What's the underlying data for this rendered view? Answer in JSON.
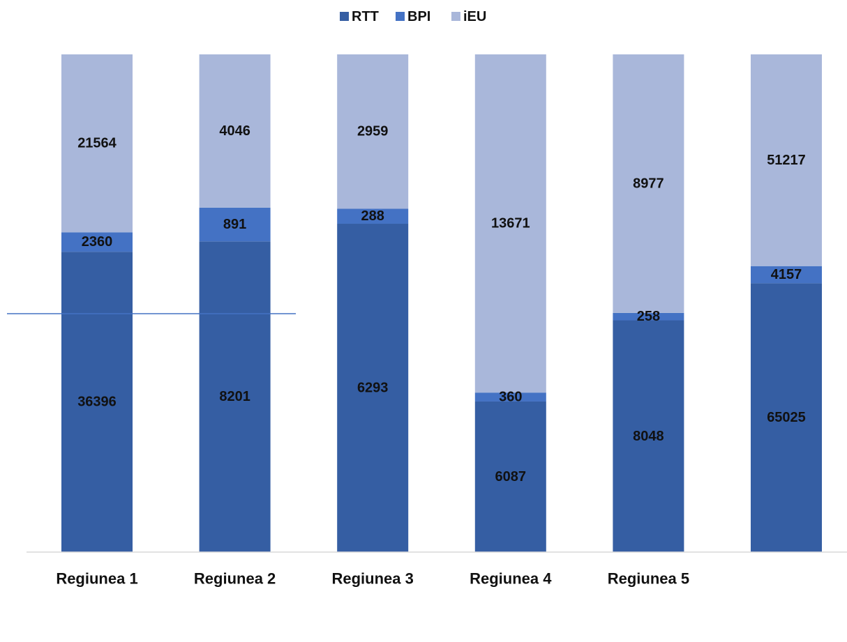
{
  "chart_data": {
    "type": "bar",
    "stacked": "percent",
    "title": "",
    "xlabel": "",
    "ylabel": "",
    "grid": false,
    "legend_position": "top",
    "categories": [
      "Regiunea 1",
      "Regiunea 2",
      "Regiunea 3",
      "Regiunea 4",
      "Regiunea 5",
      ""
    ],
    "series": [
      {
        "name": "RTT",
        "color": "#355ea3",
        "values": [
          36396,
          8201,
          6293,
          6087,
          8048,
          65025
        ]
      },
      {
        "name": "BPI",
        "color": "#4472c4",
        "values": [
          2360,
          891,
          288,
          360,
          258,
          4157
        ]
      },
      {
        "name": "iEU",
        "color": "#a9b7da",
        "values": [
          21564,
          4046,
          2959,
          13671,
          8977,
          51217
        ]
      }
    ]
  }
}
